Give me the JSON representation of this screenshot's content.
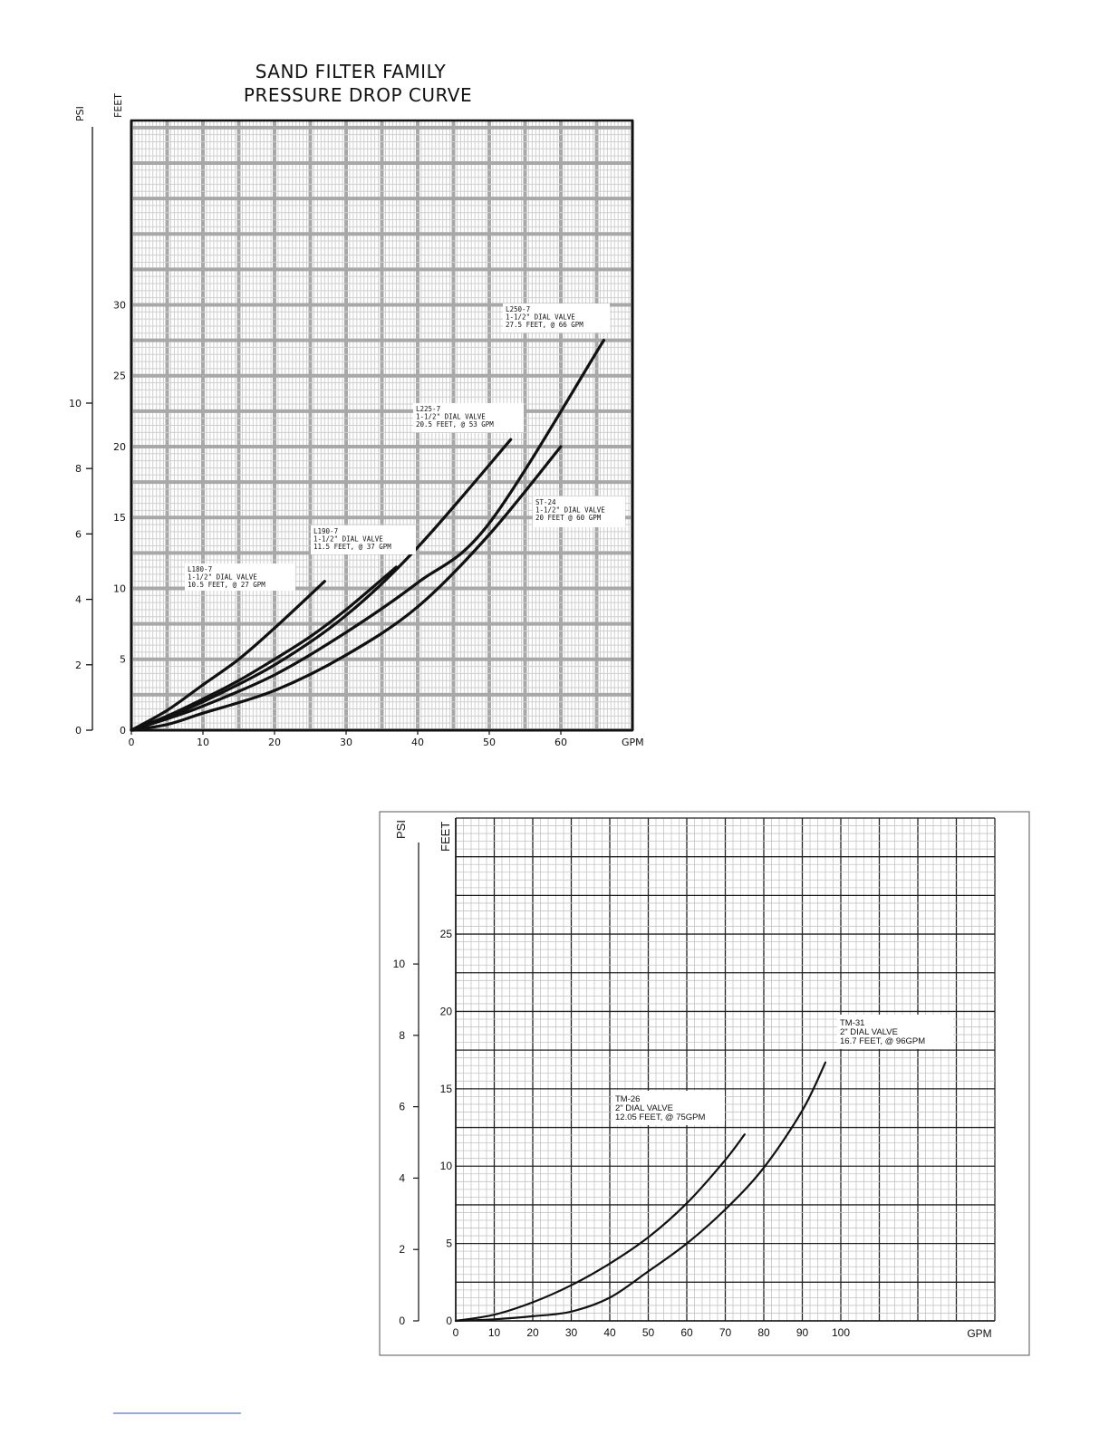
{
  "chart_data": [
    {
      "type": "line",
      "title": "SAND FILTER FAMILY\nPRESSURE DROP CURVE",
      "title_lines": [
        "SAND FILTER FAMILY",
        "PRESSURE DROP CURVE"
      ],
      "xlabel": "GPM",
      "ylabel": "FEET",
      "ylabel_secondary": "PSI",
      "xlim": [
        0,
        70
      ],
      "ylim": [
        0,
        43
      ],
      "x_ticks": [
        0,
        10,
        20,
        30,
        40,
        50,
        60
      ],
      "y_ticks": [
        0,
        5,
        10,
        15,
        20,
        25,
        30
      ],
      "psi_ticks": [
        0,
        2,
        4,
        6,
        8,
        10
      ],
      "psi_tick_labels": [
        "0",
        "2",
        "4",
        "6",
        "8",
        "10"
      ],
      "grid": true,
      "series": [
        {
          "name": "L180-7",
          "annotation": [
            "L180-7",
            "1-1/2\" DIAL VALVE",
            "10.5 FEET, @ 27 GPM"
          ],
          "x": [
            0,
            5,
            10,
            15,
            20,
            27
          ],
          "y": [
            0,
            1.4,
            3.2,
            5.0,
            7.2,
            10.5
          ]
        },
        {
          "name": "L190-7",
          "annotation": [
            "L190-7",
            "1-1/2\" DIAL VALVE",
            "11.5 FEET, @ 37 GPM"
          ],
          "x": [
            0,
            5,
            10,
            15,
            20,
            25,
            30,
            37
          ],
          "y": [
            0,
            1.0,
            2.2,
            3.5,
            5.0,
            6.6,
            8.5,
            11.5
          ]
        },
        {
          "name": "L225-7",
          "annotation": [
            "L225-7",
            "1-1/2\" DIAL VALVE",
            "20.5 FEET, @ 53 GPM"
          ],
          "x": [
            0,
            5,
            10,
            20,
            30,
            40,
            53
          ],
          "y": [
            0,
            0.9,
            2.0,
            4.6,
            8.1,
            12.9,
            20.5
          ]
        },
        {
          "name": "L250-7",
          "annotation": [
            "L250-7",
            "1-1/2\" DIAL VALVE",
            "27.5 FEET, @ 66 GPM"
          ],
          "x": [
            0,
            5,
            10,
            20,
            30,
            40,
            50,
            66
          ],
          "y": [
            0,
            0.8,
            1.7,
            3.9,
            6.9,
            10.4,
            14.6,
            27.5
          ]
        },
        {
          "name": "ST-24",
          "annotation": [
            "ST-24",
            "1-1/2\" DIAL VALVE",
            "20 FEET @ 60 GPM"
          ],
          "x": [
            0,
            5,
            10,
            20,
            30,
            40,
            50,
            60
          ],
          "y": [
            0,
            0.4,
            1.2,
            2.8,
            5.3,
            8.7,
            13.8,
            20
          ]
        }
      ]
    },
    {
      "type": "line",
      "title": "",
      "xlabel": "GPM",
      "ylabel": "FEET",
      "ylabel_secondary": "PSI",
      "xlim": [
        0,
        140
      ],
      "ylim": [
        0,
        32.5
      ],
      "x_ticks": [
        0,
        10,
        20,
        30,
        40,
        50,
        60,
        70,
        80,
        90,
        100
      ],
      "y_ticks": [
        0,
        5,
        10,
        15,
        20,
        25
      ],
      "psi_ticks": [
        0,
        2,
        4,
        6,
        8,
        10
      ],
      "psi_tick_labels": [
        "0",
        "2",
        "4",
        "6",
        "8",
        "10"
      ],
      "grid": true,
      "series": [
        {
          "name": "TM-26",
          "annotation": [
            "TM-26",
            "2\" DIAL VALVE",
            "12.05 FEET, @ 75GPM"
          ],
          "x": [
            0,
            10,
            20,
            30,
            40,
            50,
            60,
            70,
            75
          ],
          "y": [
            0,
            0.4,
            1.2,
            2.3,
            3.7,
            5.4,
            7.6,
            10.4,
            12.05
          ]
        },
        {
          "name": "TM-31",
          "annotation": [
            "TM-31",
            "2\" DIAL VALVE",
            "16.7 FEET, @ 96GPM"
          ],
          "x": [
            0,
            10,
            20,
            30,
            40,
            50,
            60,
            70,
            80,
            90,
            96
          ],
          "y": [
            0,
            0.1,
            0.3,
            0.6,
            1.5,
            3.2,
            5.0,
            7.2,
            9.9,
            13.6,
            16.7
          ]
        }
      ]
    }
  ]
}
